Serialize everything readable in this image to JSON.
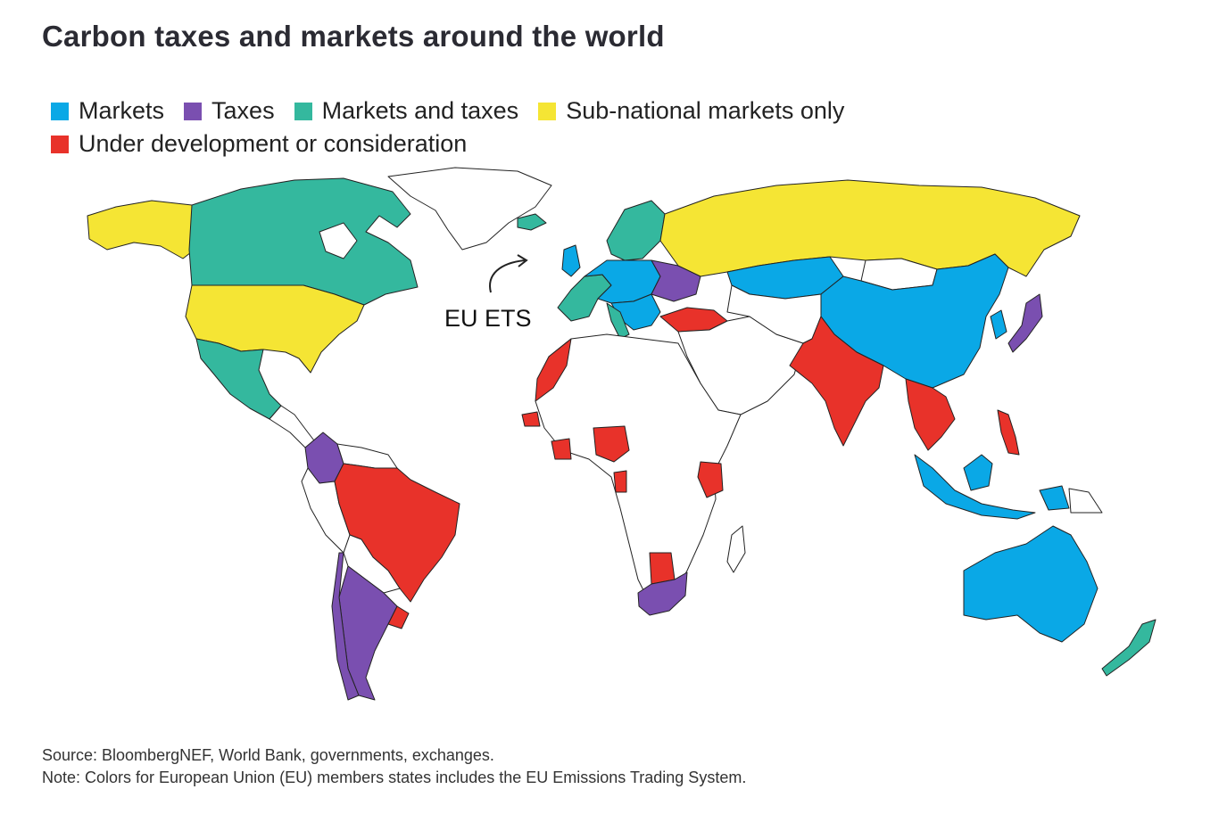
{
  "title": "Carbon taxes and markets around the world",
  "legend": {
    "row1": [
      {
        "label": "Markets",
        "color": "#0aa8e6"
      },
      {
        "label": "Taxes",
        "color": "#7a4fb0"
      },
      {
        "label": "Markets and taxes",
        "color": "#34b89e"
      },
      {
        "label": "Sub-national markets only",
        "color": "#f5e534"
      }
    ],
    "row2": [
      {
        "label": "Under development or consideration",
        "color": "#e8322a"
      }
    ]
  },
  "annotation": {
    "label": "EU ETS"
  },
  "footer": {
    "source": "Source: BloombergNEF, World Bank, governments, exchanges.",
    "note": "Note: Colors for European Union (EU) members states includes the EU Emissions Trading System."
  },
  "colors": {
    "markets": "#0aa8e6",
    "taxes": "#7a4fb0",
    "markets_and_taxes": "#34b89e",
    "sub_national": "#f5e534",
    "under_development": "#e8322a",
    "none": "#ffffff",
    "border": "#222222"
  }
}
